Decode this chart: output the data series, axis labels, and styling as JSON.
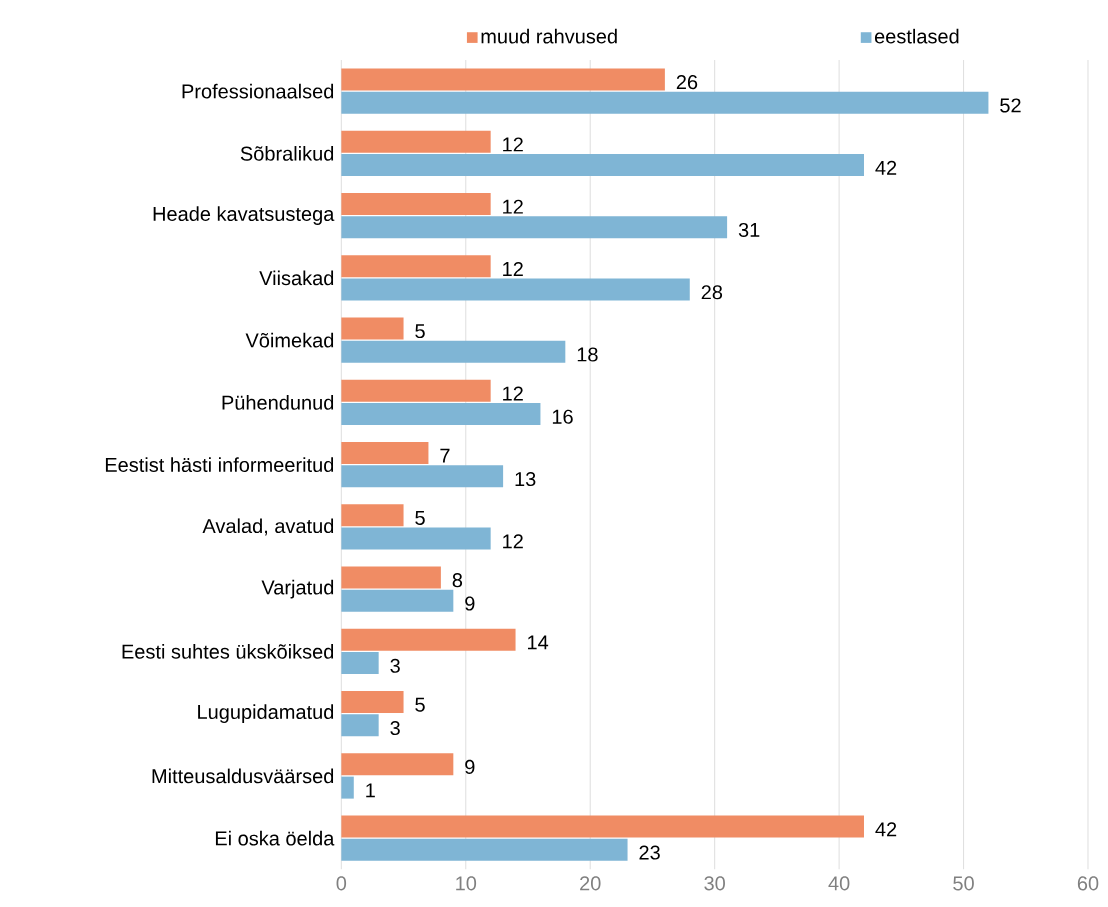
{
  "chart_data": {
    "type": "bar",
    "orientation": "horizontal",
    "categories": [
      "Professionaalsed",
      "Sõbralikud",
      "Heade kavatsustega",
      "Viisakad",
      "Võimekad",
      "Pühendunud",
      "Eestist hästi informeeritud",
      "Avalad, avatud",
      "Varjatud",
      "Eesti suhtes ükskõiksed",
      "Lugupidamatud",
      "Mitteusaldusväärsed",
      "Ei oska öelda"
    ],
    "series": [
      {
        "name": "muud rahvused",
        "color": "#f08c64",
        "values": [
          26,
          12,
          12,
          12,
          5,
          12,
          7,
          5,
          8,
          14,
          5,
          9,
          42
        ]
      },
      {
        "name": "eestlased",
        "color": "#7fb5d5",
        "values": [
          52,
          42,
          31,
          28,
          18,
          16,
          13,
          12,
          9,
          3,
          3,
          1,
          23
        ]
      }
    ],
    "xlim": [
      0,
      60
    ],
    "xticks": [
      0,
      10,
      20,
      30,
      40,
      50,
      60
    ],
    "grid": "x",
    "legend": "top",
    "data_labels": true
  }
}
